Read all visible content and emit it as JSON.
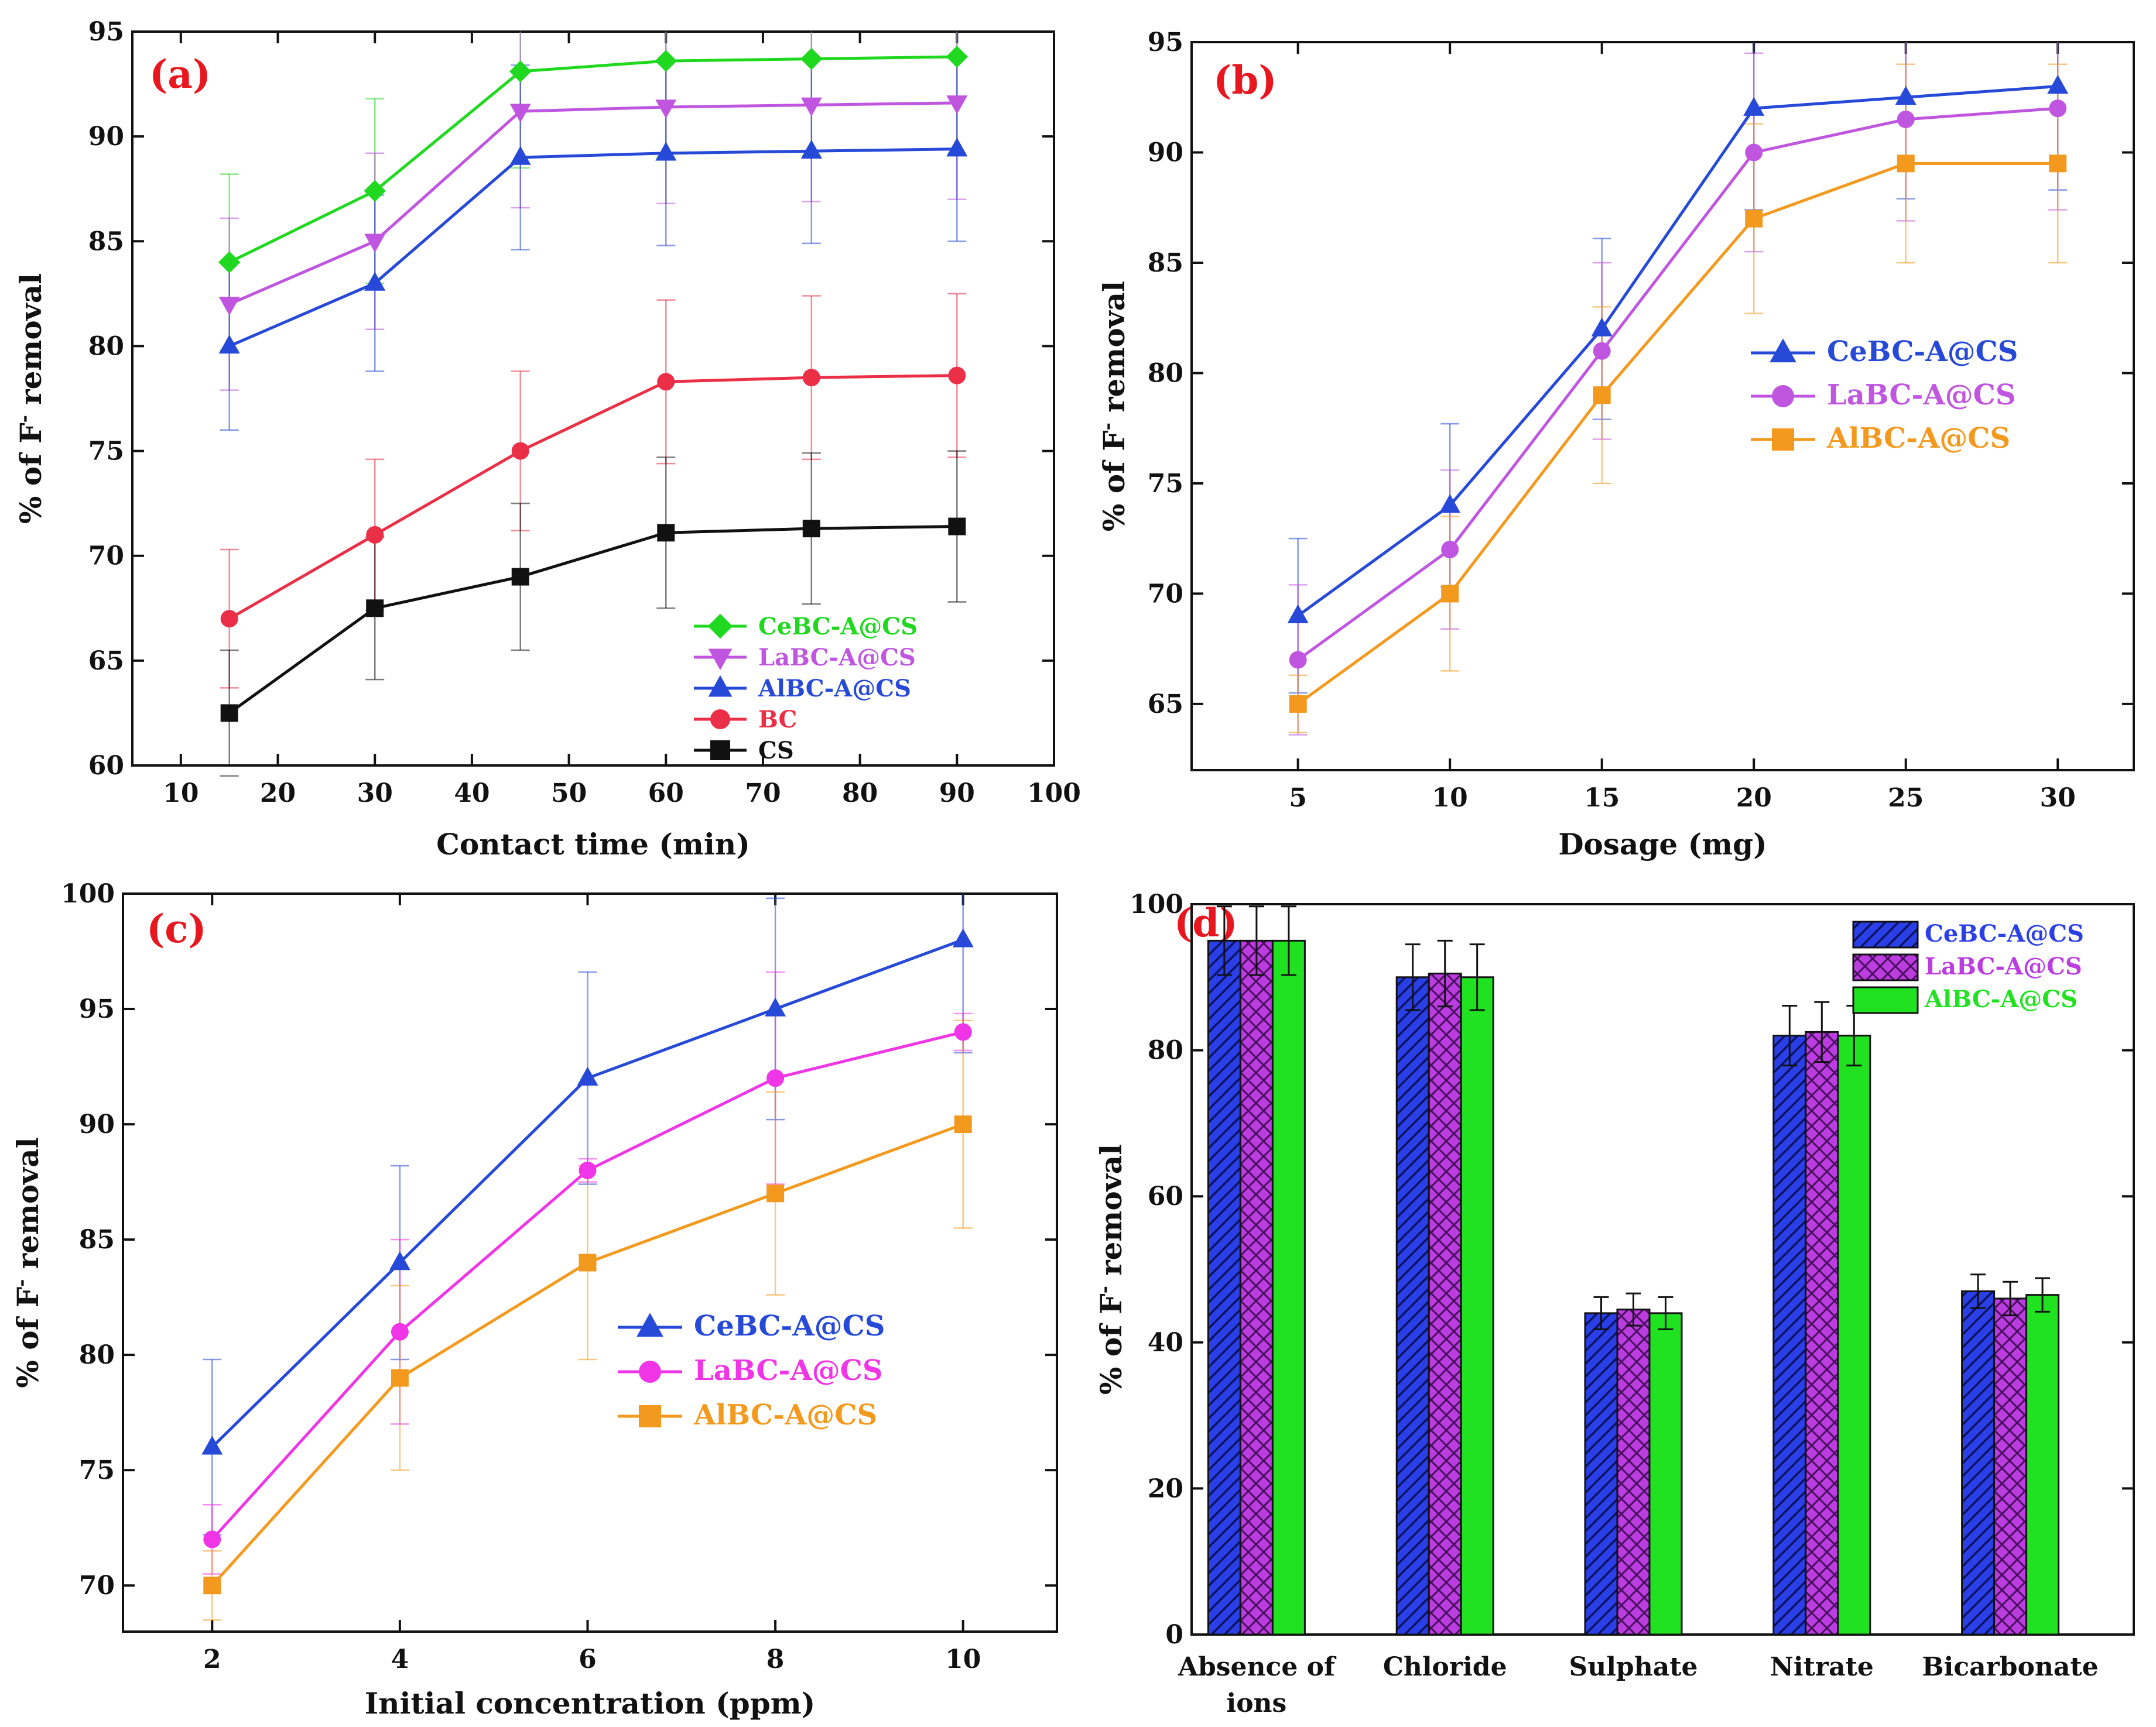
{
  "chart_data": [
    {
      "id": "a",
      "type": "line",
      "panel_label": "(a)",
      "xlabel": "Contact time (min)",
      "ylabel_prefix": "% of F",
      "ylabel_sup": "-",
      "ylabel_suffix": " removal",
      "xlim": [
        5,
        100
      ],
      "ylim": [
        60,
        95
      ],
      "xticks": [
        10,
        20,
        30,
        40,
        50,
        60,
        70,
        80,
        90,
        100
      ],
      "yticks": [
        60,
        65,
        70,
        75,
        80,
        85,
        90,
        95
      ],
      "x": [
        15,
        30,
        45,
        60,
        75,
        90
      ],
      "legend_position": "bottom-right",
      "series": [
        {
          "name": "CeBC-A@CS",
          "color": "#1fd81f",
          "marker": "diamond",
          "values": [
            84.0,
            87.4,
            93.1,
            93.6,
            93.7,
            93.8
          ],
          "err": [
            4.2,
            4.4,
            4.6,
            4.6,
            4.6,
            4.6
          ]
        },
        {
          "name": "LaBC-A@CS",
          "color": "#c056e0",
          "marker": "triangle-down",
          "values": [
            82.0,
            85.0,
            91.2,
            91.4,
            91.5,
            91.6
          ],
          "err": [
            4.1,
            4.2,
            4.6,
            4.6,
            4.6,
            4.6
          ]
        },
        {
          "name": "AlBC-A@CS",
          "color": "#2649d8",
          "marker": "triangle-up",
          "values": [
            80.0,
            83.0,
            89.0,
            89.2,
            89.3,
            89.4
          ],
          "err": [
            4.0,
            4.2,
            4.4,
            4.4,
            4.4,
            4.4
          ]
        },
        {
          "name": "BC",
          "color": "#ea2f46",
          "marker": "circle",
          "values": [
            67.0,
            71.0,
            75.0,
            78.3,
            78.5,
            78.6
          ],
          "err": [
            3.3,
            3.6,
            3.8,
            3.9,
            3.9,
            3.9
          ]
        },
        {
          "name": "CS",
          "color": "#111111",
          "marker": "square",
          "values": [
            62.5,
            67.5,
            69.0,
            71.1,
            71.3,
            71.4
          ],
          "err": [
            3.0,
            3.4,
            3.5,
            3.6,
            3.6,
            3.6
          ]
        }
      ]
    },
    {
      "id": "b",
      "type": "line",
      "panel_label": "(b)",
      "xlabel": "Dosage (mg)",
      "ylabel_prefix": "% of F",
      "ylabel_sup": "-",
      "ylabel_suffix": " removal",
      "xlim": [
        1.5,
        32.5
      ],
      "ylim": [
        62,
        95
      ],
      "xticks": [
        5,
        10,
        15,
        20,
        25,
        30
      ],
      "yticks": [
        65,
        70,
        75,
        80,
        85,
        90,
        95
      ],
      "x": [
        5,
        10,
        15,
        20,
        25,
        30
      ],
      "legend_position": "center-right",
      "series": [
        {
          "name": "CeBC-A@CS",
          "color": "#2649d8",
          "marker": "triangle-up",
          "values": [
            69,
            74,
            82,
            92,
            92.5,
            93
          ],
          "err": [
            3.5,
            3.7,
            4.1,
            4.6,
            4.6,
            4.7
          ]
        },
        {
          "name": "LaBC-A@CS",
          "color": "#c056e0",
          "marker": "circle",
          "values": [
            67,
            72,
            81,
            90,
            91.5,
            92
          ],
          "err": [
            3.4,
            3.6,
            4.0,
            4.5,
            4.6,
            4.6
          ]
        },
        {
          "name": "AlBC-A@CS",
          "color": "#f39a1e",
          "marker": "square",
          "values": [
            65,
            70,
            79,
            87,
            89.5,
            89.5
          ],
          "err": [
            1.3,
            3.5,
            4.0,
            4.3,
            4.5,
            4.5
          ]
        }
      ]
    },
    {
      "id": "c",
      "type": "line",
      "panel_label": "(c)",
      "xlabel": "Initial concentration (ppm)",
      "ylabel_prefix": "% of F",
      "ylabel_sup": "-",
      "ylabel_suffix": " removal",
      "xlim": [
        1.05,
        11.0
      ],
      "ylim": [
        68,
        100
      ],
      "xticks": [
        2,
        4,
        6,
        8,
        10
      ],
      "yticks": [
        70,
        75,
        80,
        85,
        90,
        95,
        100
      ],
      "x": [
        2,
        4,
        6,
        8,
        10
      ],
      "legend_position": "center-right",
      "series": [
        {
          "name": "CeBC-A@CS",
          "color": "#2649d8",
          "marker": "triangle-up",
          "values": [
            76,
            84,
            92,
            95,
            98
          ],
          "err": [
            3.8,
            4.2,
            4.6,
            4.8,
            4.9
          ]
        },
        {
          "name": "LaBC-A@CS",
          "color": "#f035e6",
          "marker": "circle",
          "values": [
            72,
            81,
            88,
            92,
            94
          ],
          "err": [
            1.5,
            4.0,
            0.5,
            4.6,
            0.8
          ]
        },
        {
          "name": "AlBC-A@CS",
          "color": "#f39a1e",
          "marker": "square",
          "values": [
            70,
            79,
            84,
            87,
            90
          ],
          "err": [
            1.5,
            4.0,
            4.2,
            4.4,
            4.5
          ]
        }
      ]
    },
    {
      "id": "d",
      "type": "bar",
      "panel_label": "(d)",
      "ylabel_prefix": "% of F",
      "ylabel_sup": "-",
      "ylabel_suffix": " removal",
      "ylim": [
        0,
        100
      ],
      "yticks": [
        0,
        20,
        40,
        60,
        80,
        100
      ],
      "categories": [
        [
          "Absence of",
          "ions"
        ],
        [
          "Chloride"
        ],
        [
          "Sulphate"
        ],
        [
          "Nitrate"
        ],
        [
          "Bicarbonate"
        ]
      ],
      "legend_position": "top-right",
      "series": [
        {
          "name": "CeBC-A@CS",
          "color": "#2a3fe6",
          "hatch": "diagonal",
          "values": [
            95,
            90,
            44,
            82,
            47
          ],
          "err": [
            4.7,
            4.5,
            2.2,
            4.1,
            2.3
          ]
        },
        {
          "name": "LaBC-A@CS",
          "color": "#bb3de0",
          "hatch": "cross",
          "values": [
            95,
            90.5,
            44.5,
            82.5,
            46
          ],
          "err": [
            4.7,
            4.5,
            2.2,
            4.1,
            2.3
          ]
        },
        {
          "name": "AlBC-A@CS",
          "color": "#21e221",
          "hatch": "none",
          "values": [
            95,
            90,
            44,
            82,
            46.5
          ],
          "err": [
            4.7,
            4.5,
            2.2,
            4.1,
            2.3
          ]
        }
      ]
    }
  ]
}
